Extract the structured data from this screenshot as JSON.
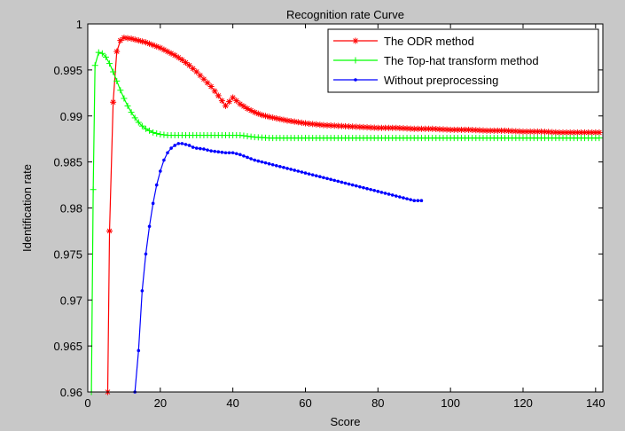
{
  "chart_data": {
    "type": "line",
    "title": "Recognition rate Curve",
    "xlabel": "Score",
    "ylabel": "Identification rate",
    "xlim": [
      0,
      142
    ],
    "ylim": [
      0.96,
      1.0
    ],
    "xticks": [
      0,
      20,
      40,
      60,
      80,
      100,
      120,
      140
    ],
    "yticks": [
      0.96,
      0.965,
      0.97,
      0.975,
      0.98,
      0.985,
      0.99,
      0.995,
      1
    ],
    "ytick_labels": [
      "0.96",
      "0.965",
      "0.97",
      "0.975",
      "0.98",
      "0.985",
      "0.99",
      "0.995",
      "1"
    ],
    "grid": false,
    "legend_position": "top-right",
    "background": "#c8c8c8",
    "plot_background": "#ffffff",
    "series": [
      {
        "name": "The ODR method",
        "color": "#ff0000",
        "marker": "asterisk",
        "x": [
          5.5,
          6,
          7,
          8,
          9,
          10,
          12,
          14,
          16,
          18,
          20,
          22,
          24,
          26,
          28,
          30,
          32,
          34,
          36,
          38,
          40,
          42,
          44,
          46,
          48,
          50,
          55,
          60,
          65,
          70,
          75,
          80,
          85,
          90,
          95,
          100,
          105,
          110,
          115,
          120,
          125,
          130,
          135,
          141
        ],
        "y": [
          0.96,
          0.9775,
          0.9915,
          0.997,
          0.9982,
          0.9985,
          0.9984,
          0.9982,
          0.998,
          0.9977,
          0.9974,
          0.997,
          0.9966,
          0.9961,
          0.9955,
          0.9948,
          0.994,
          0.9932,
          0.9922,
          0.9911,
          0.992,
          0.9913,
          0.9908,
          0.9904,
          0.9901,
          0.9899,
          0.9895,
          0.9892,
          0.989,
          0.9889,
          0.9888,
          0.9887,
          0.9887,
          0.9886,
          0.9886,
          0.9885,
          0.9885,
          0.9884,
          0.9884,
          0.9883,
          0.9883,
          0.9882,
          0.9882,
          0.9882
        ]
      },
      {
        "name": "The Top-hat transform method",
        "color": "#00ff00",
        "marker": "plus",
        "x": [
          1,
          1.5,
          2,
          3,
          4,
          5,
          6,
          7,
          8,
          9,
          10,
          11,
          12,
          13,
          14,
          15,
          16,
          17,
          18,
          19,
          20,
          22,
          24,
          26,
          28,
          30,
          32,
          34,
          36,
          38,
          40,
          42,
          44,
          46,
          50,
          60,
          70,
          80,
          90,
          100,
          110,
          120,
          130,
          141
        ],
        "y": [
          0.96,
          0.982,
          0.9955,
          0.9969,
          0.9968,
          0.9964,
          0.9957,
          0.9948,
          0.9938,
          0.9928,
          0.9919,
          0.9911,
          0.9904,
          0.9898,
          0.9893,
          0.9889,
          0.9886,
          0.9884,
          0.9882,
          0.9881,
          0.988,
          0.9879,
          0.9879,
          0.9879,
          0.9879,
          0.9879,
          0.9879,
          0.9879,
          0.9879,
          0.9879,
          0.9879,
          0.9879,
          0.9878,
          0.9877,
          0.9876,
          0.9876,
          0.9876,
          0.9876,
          0.9876,
          0.9876,
          0.9876,
          0.9876,
          0.9876,
          0.9876
        ]
      },
      {
        "name": "Without preprocessing",
        "color": "#0000ff",
        "marker": "dot",
        "x": [
          13,
          14,
          15,
          16,
          17,
          18,
          19,
          20,
          21,
          22,
          23,
          24,
          25,
          26,
          27,
          28,
          29,
          30,
          32,
          34,
          36,
          38,
          40,
          42,
          44,
          46,
          48,
          50,
          52,
          54,
          56,
          58,
          60,
          62,
          64,
          66,
          68,
          70,
          72,
          74,
          76,
          78,
          80,
          82,
          84,
          86,
          88,
          90,
          92
        ],
        "y": [
          0.96,
          0.9645,
          0.971,
          0.975,
          0.978,
          0.9805,
          0.9825,
          0.984,
          0.9852,
          0.986,
          0.9865,
          0.9868,
          0.987,
          0.987,
          0.9869,
          0.9868,
          0.9866,
          0.9865,
          0.9864,
          0.9862,
          0.9861,
          0.986,
          0.986,
          0.9858,
          0.9855,
          0.9852,
          0.985,
          0.9848,
          0.9846,
          0.9844,
          0.9842,
          0.984,
          0.9838,
          0.9836,
          0.9834,
          0.9832,
          0.983,
          0.9828,
          0.9826,
          0.9824,
          0.9822,
          0.982,
          0.9818,
          0.9816,
          0.9814,
          0.9812,
          0.981,
          0.9808,
          0.9808
        ]
      }
    ]
  }
}
